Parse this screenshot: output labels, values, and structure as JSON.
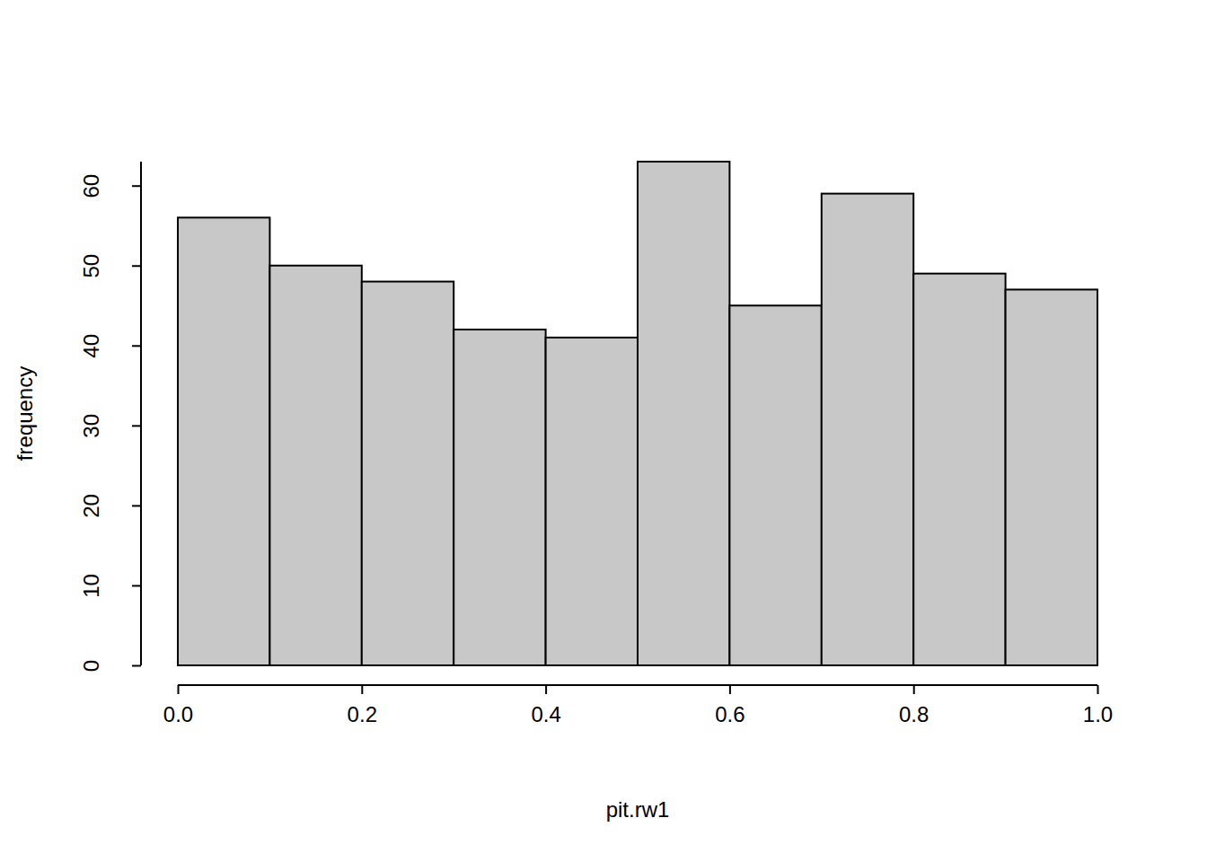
{
  "chart_data": {
    "type": "histogram",
    "x_label": "pit.rw1",
    "y_label": "frequency",
    "bins": [
      0,
      0.1,
      0.2,
      0.3,
      0.4,
      0.5,
      0.6,
      0.7,
      0.8,
      0.9,
      1
    ],
    "values": [
      56,
      50,
      48,
      42,
      41,
      63,
      45,
      59,
      49,
      47
    ],
    "color": "#c8c8c8",
    "xlim": [
      0,
      1
    ],
    "xticks": [
      {
        "value": 0,
        "label": "0.0"
      },
      0.2,
      0.4,
      0.6,
      0.8,
      {
        "value": 1,
        "label": "1.0"
      }
    ],
    "ylim": [
      0,
      63
    ],
    "yticks": [
      0,
      10,
      20,
      30,
      40,
      50,
      60
    ],
    "grid": false
  }
}
